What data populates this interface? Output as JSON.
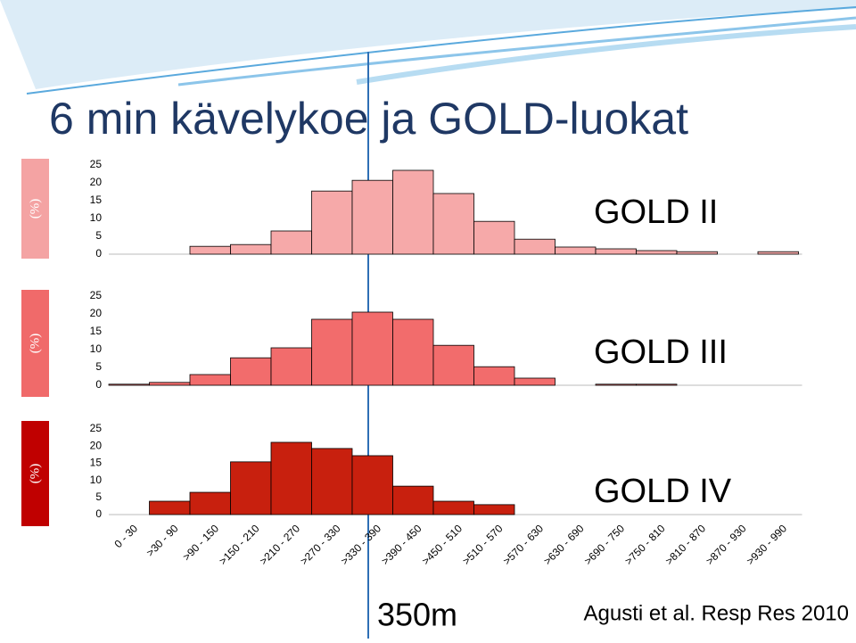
{
  "title": "6 min kävelykoe ja GOLD-luokat",
  "annotation": "350m",
  "citation": "Agusti et al. Resp Res 2010",
  "chart_data": [
    {
      "type": "bar",
      "label": "GOLD II",
      "ylabel": "(%)",
      "color": "#f6a9a9",
      "panel_color": "#f4a3a3",
      "values": [
        0,
        0,
        2.2,
        2.7,
        6.5,
        17.7,
        20.7,
        23.5,
        17,
        9.2,
        4.2,
        2,
        1.5,
        1,
        0.7,
        0,
        0.7
      ],
      "ylim": [
        0,
        25
      ],
      "yticks": [
        0,
        5,
        10,
        15,
        20,
        25
      ]
    },
    {
      "type": "bar",
      "label": "GOLD III",
      "ylabel": "(%)",
      "color": "#f26c6c",
      "panel_color": "#f06a6a",
      "values": [
        0.3,
        0.8,
        3,
        7.7,
        10.5,
        18.5,
        20.5,
        18.5,
        11.2,
        5.2,
        2,
        0,
        0.3,
        0.3,
        0,
        0,
        0
      ],
      "ylim": [
        0,
        25
      ],
      "yticks": [
        0,
        5,
        10,
        15,
        20,
        25
      ]
    },
    {
      "type": "bar",
      "label": "GOLD IV",
      "ylabel": "(%)",
      "color": "#c8200e",
      "panel_color": "#c00000",
      "categories": [
        "0 - 30",
        ">30 - 90",
        ">90 - 150",
        ">150 - 210",
        ">210 - 270",
        ">270 - 330",
        ">330 - 390",
        ">390 - 450",
        ">450 - 510",
        ">510 - 570",
        ">570 - 630",
        ">630 - 690",
        ">690 - 750",
        ">750 - 810",
        ">810 - 870",
        ">870 - 930",
        ">930 - 990"
      ],
      "values": [
        0,
        3.9,
        6.5,
        15.4,
        21.1,
        19.3,
        17.2,
        8.3,
        3.9,
        2.9,
        0,
        0,
        0,
        0,
        0,
        0,
        0
      ],
      "ylim": [
        0,
        25
      ],
      "yticks": [
        0,
        5,
        10,
        15,
        20,
        25
      ]
    }
  ]
}
